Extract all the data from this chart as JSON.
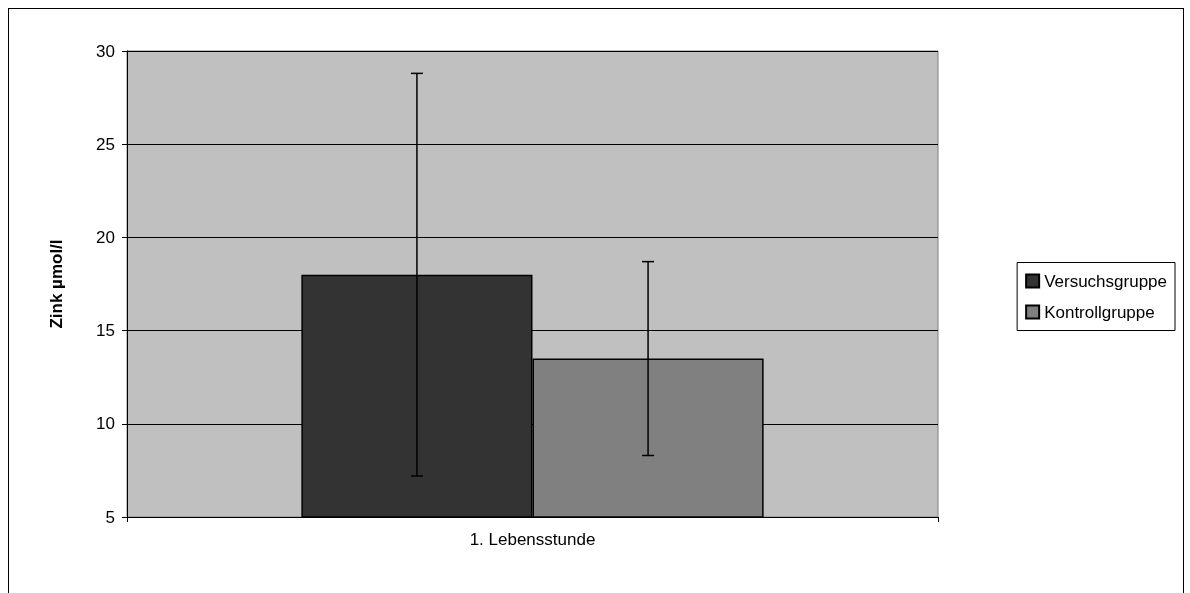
{
  "chart_data": {
    "type": "bar",
    "ylabel": "Zink µmol/l",
    "categories": [
      "1. Lebensstunde"
    ],
    "series": [
      {
        "name": "Versuchsgruppe",
        "color": "#333333",
        "values": [
          18.0
        ],
        "errors": [
          10.8
        ]
      },
      {
        "name": "Kontrollgruppe",
        "color": "#808080",
        "values": [
          13.5
        ],
        "errors": [
          5.2
        ]
      }
    ],
    "ylim": [
      5,
      30
    ],
    "yticks": [
      5,
      10,
      15,
      20,
      25,
      30
    ],
    "grid": "y",
    "legend": "right"
  }
}
